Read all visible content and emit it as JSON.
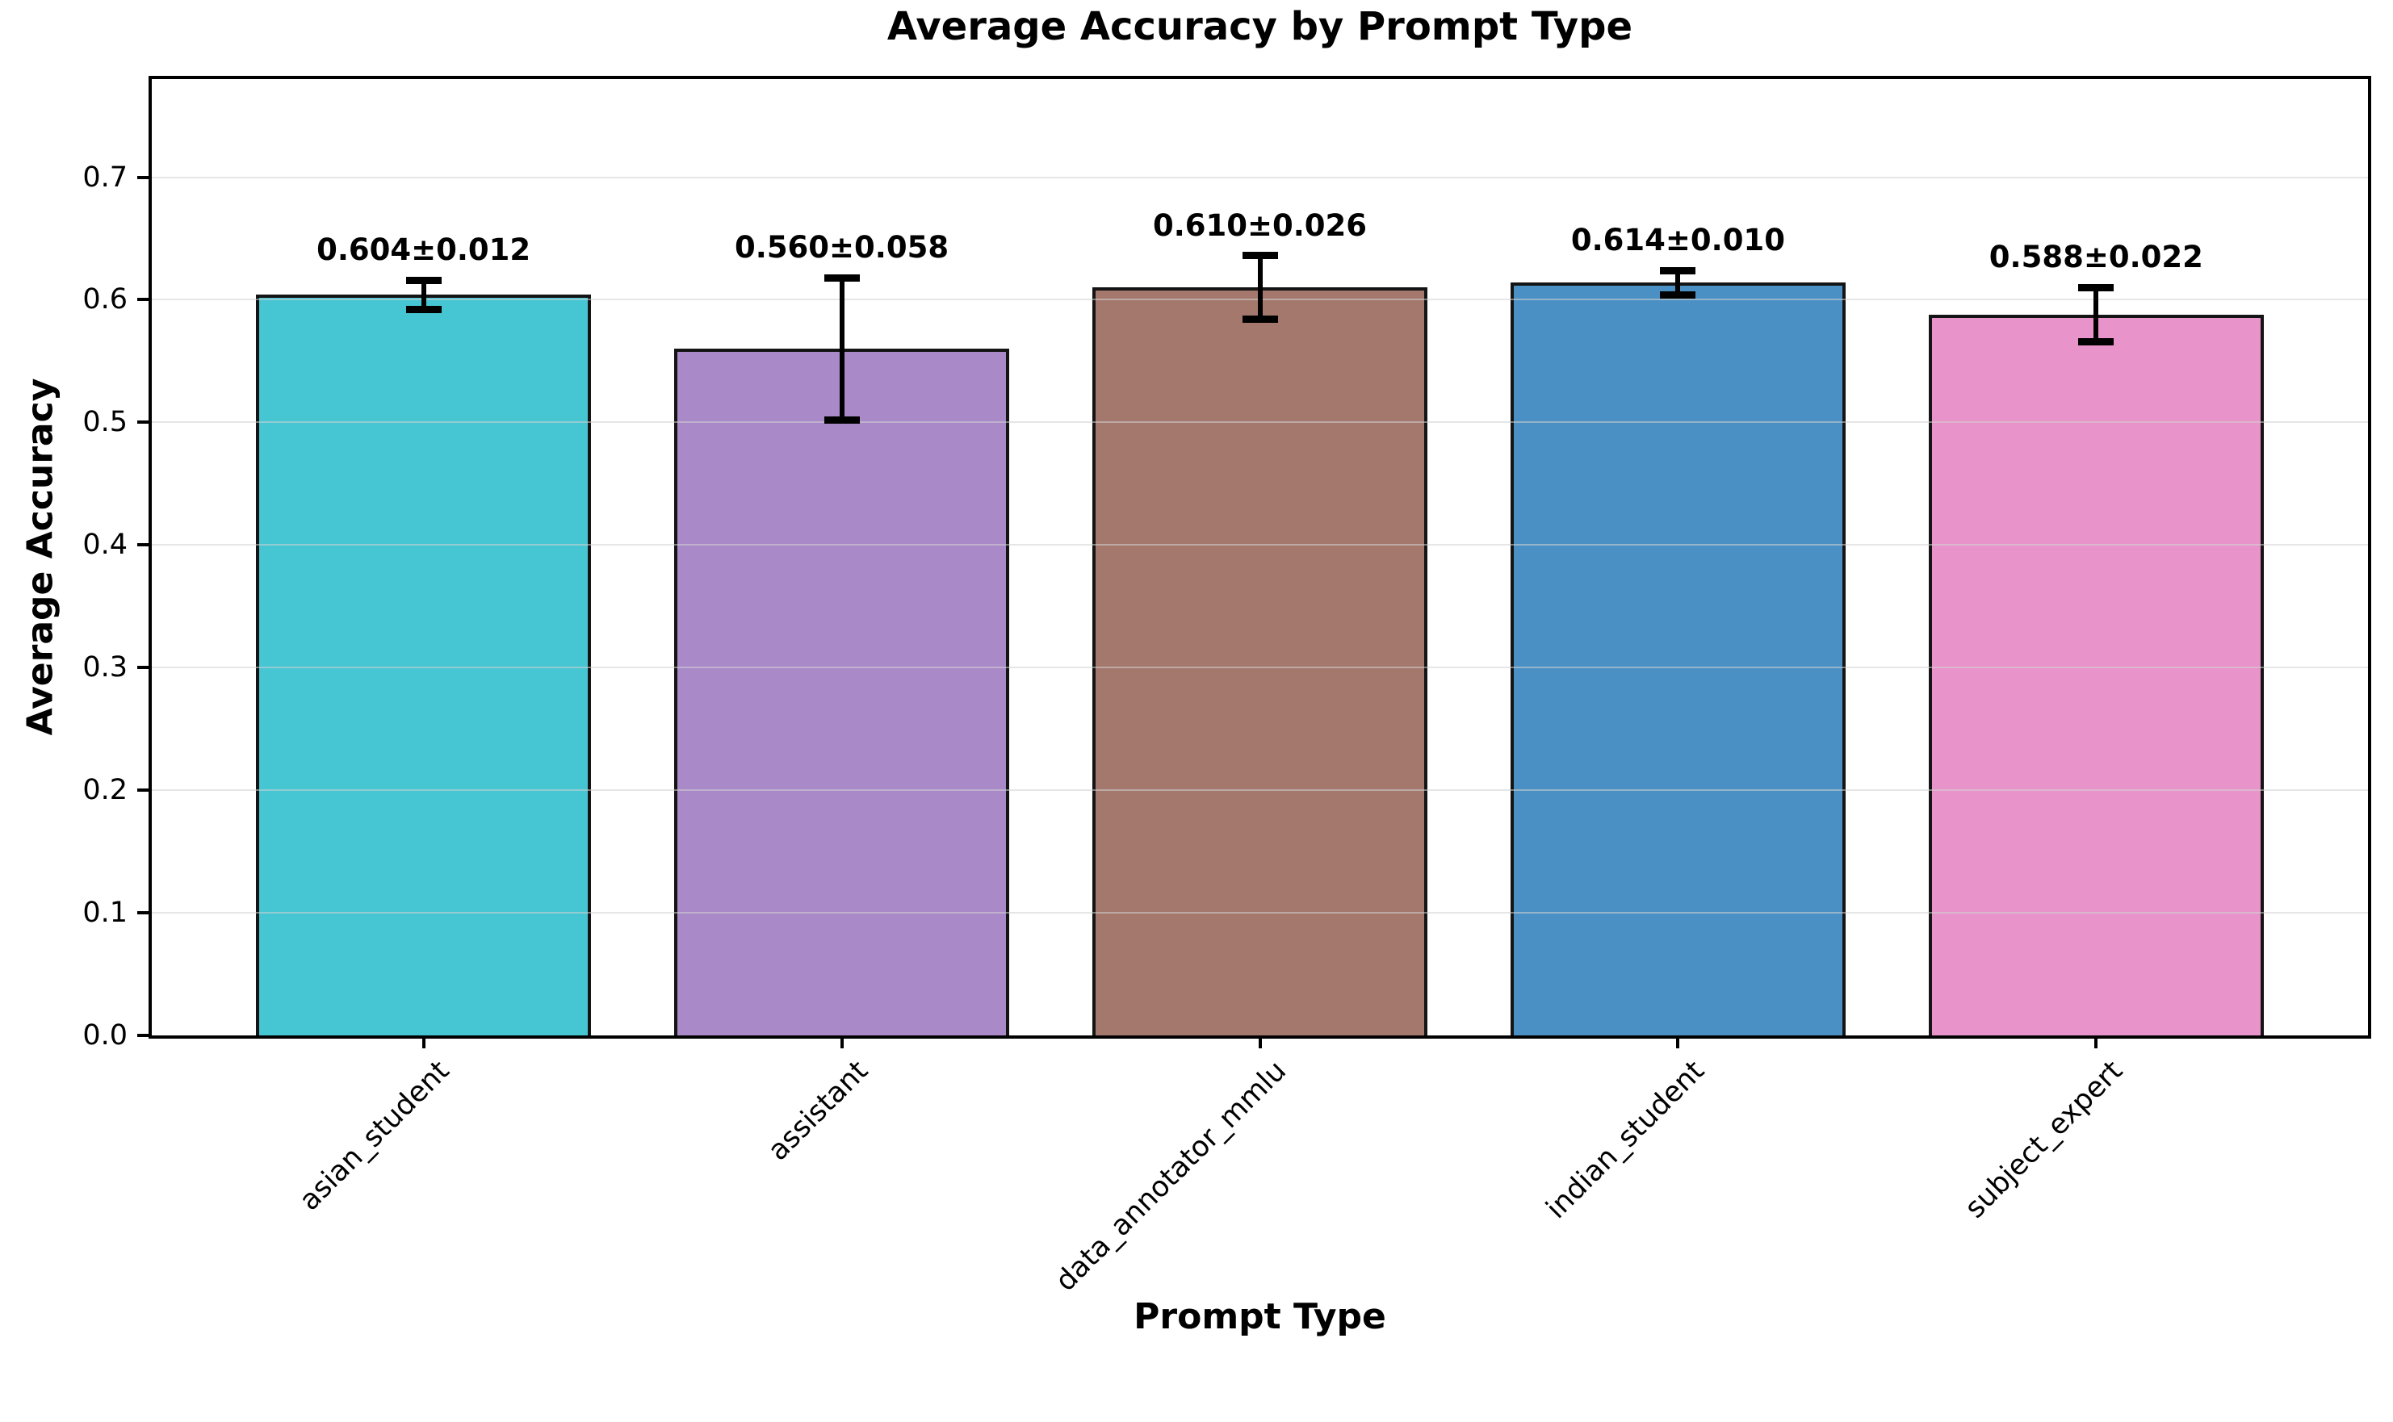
{
  "chart_data": {
    "type": "bar",
    "title": "Average Accuracy by Prompt Type",
    "xlabel": "Prompt Type",
    "ylabel": "Average Accuracy",
    "categories": [
      "asian_student",
      "assistant",
      "data_annotator_mmlu",
      "indian_student",
      "subject_expert"
    ],
    "values": [
      0.604,
      0.56,
      0.61,
      0.614,
      0.588
    ],
    "errors": [
      0.012,
      0.058,
      0.026,
      0.01,
      0.022
    ],
    "bar_labels": [
      "0.604±0.012",
      "0.560±0.058",
      "0.610±0.026",
      "0.614±0.010",
      "0.588±0.022"
    ],
    "bar_colors": [
      "#46C5D2",
      "#A989C8",
      "#A5786E",
      "#4B90C4",
      "#E893CA"
    ],
    "bar_edge_color": "#141414",
    "error_bar_color": "#000000",
    "grid": true,
    "gridline_color": "#d2d2d2",
    "legend_position": "none",
    "ylim": [
      0,
      0.78
    ],
    "ytick_labels": [
      "0.0",
      "0.1",
      "0.2",
      "0.3",
      "0.4",
      "0.5",
      "0.6",
      "0.7"
    ],
    "ytick_values": [
      0.0,
      0.1,
      0.2,
      0.3,
      0.4,
      0.5,
      0.6,
      0.7
    ],
    "x_tick_rotation": 45
  }
}
